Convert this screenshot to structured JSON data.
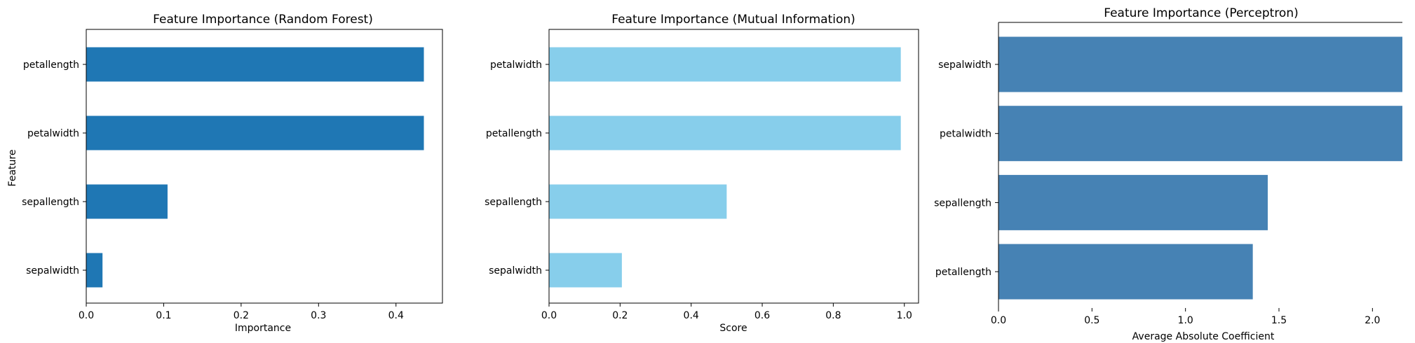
{
  "chart_data": [
    {
      "type": "bar",
      "orientation": "horizontal",
      "title": "Feature Importance (Random Forest)",
      "xlabel": "Importance",
      "ylabel": "Feature",
      "categories": [
        "petallength",
        "petalwidth",
        "sepallength",
        "sepalwidth"
      ],
      "values": [
        0.436,
        0.436,
        0.105,
        0.021
      ],
      "xlim": [
        0,
        0.46
      ],
      "xticks": [
        "0.0",
        "0.1",
        "0.2",
        "0.3",
        "0.4"
      ],
      "color": "#1f77b4",
      "frame": "full",
      "grid": false
    },
    {
      "type": "bar",
      "orientation": "horizontal",
      "title": "Feature Importance (Mutual Information)",
      "xlabel": "Score",
      "ylabel": "",
      "categories": [
        "petalwidth",
        "petallength",
        "sepallength",
        "sepalwidth"
      ],
      "values": [
        0.99,
        0.99,
        0.5,
        0.205
      ],
      "xlim": [
        0,
        1.04
      ],
      "xticks": [
        "0.0",
        "0.2",
        "0.4",
        "0.6",
        "0.8",
        "1.0"
      ],
      "color": "#87ceeb",
      "frame": "full",
      "grid": false
    },
    {
      "type": "bar",
      "orientation": "horizontal",
      "title": "Feature Importance (Perceptron)",
      "xlabel": "Average Absolute Coefficient",
      "ylabel": "",
      "categories": [
        "sepalwidth",
        "petalwidth",
        "sepallength",
        "petallength"
      ],
      "values": [
        2.16,
        2.16,
        1.44,
        1.36
      ],
      "xlim": [
        0,
        2.16
      ],
      "xticks": [
        "0.0",
        "0.5",
        "1.0",
        "1.5",
        "2.0"
      ],
      "color": "#4682b4",
      "frame": "left-top",
      "grid": false
    }
  ]
}
